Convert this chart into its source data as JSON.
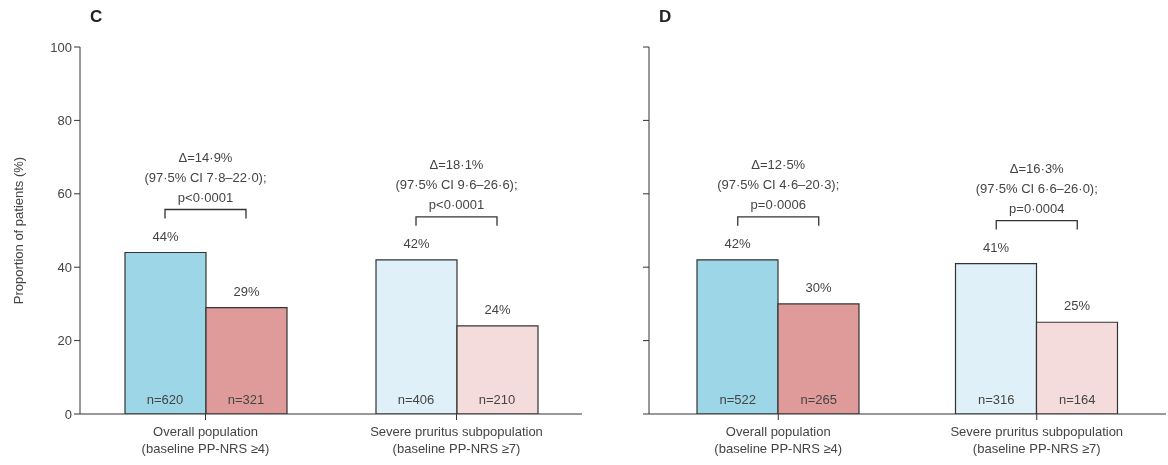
{
  "chart_data": [
    {
      "type": "bar",
      "title": "C",
      "ylabel": "Proportion of patients (%)",
      "categories": [
        "Overall population\n(baseline PP-NRS ≥4)",
        "Severe pruritus subpopulation\n(baseline PP-NRS ≥7)"
      ],
      "series": [
        {
          "values": [
            44,
            42
          ],
          "colors": [
            "#9dd6e6",
            "#dff0f8"
          ],
          "value_labels": [
            "44%",
            "42%"
          ]
        },
        {
          "values": [
            29,
            24
          ],
          "colors": [
            "#df9b9a",
            "#f5dcdc"
          ],
          "value_labels": [
            "29%",
            "24%"
          ]
        }
      ],
      "ylim": [
        0,
        100
      ],
      "yticks": [
        0,
        20,
        40,
        60,
        80,
        100
      ],
      "grid": false,
      "legend": false,
      "annotations": [
        "Δ=14·9%\n(97·5% CI 7·8–22·0);\np<0·0001",
        "Δ=18·1%\n(97·5% CI 9·6–26·6);\np<0·0001",
        "n=620",
        "n=321",
        "n=406",
        "n=210"
      ]
    },
    {
      "type": "bar",
      "title": "D",
      "categories": [
        "Overall population\n(baseline PP-NRS ≥4)",
        "Severe pruritus subpopulation\n(baseline PP-NRS ≥7)"
      ],
      "series": [
        {
          "values": [
            42,
            41
          ],
          "colors": [
            "#9dd6e6",
            "#dff0f8"
          ],
          "value_labels": [
            "42%",
            "41%"
          ]
        },
        {
          "values": [
            30,
            25
          ],
          "colors": [
            "#df9b9a",
            "#f5dcdc"
          ],
          "value_labels": [
            "30%",
            "25%"
          ]
        }
      ],
      "ylim": [
        0,
        100
      ],
      "yticks": [
        {
          "value": 0,
          "label": null
        },
        {
          "value": 20,
          "label": null
        },
        {
          "value": 40,
          "label": null
        },
        {
          "value": 60,
          "label": null
        },
        {
          "value": 80,
          "label": null
        },
        {
          "value": 100,
          "label": null
        }
      ],
      "tick_labels": "x",
      "grid": false,
      "legend": false,
      "annotations": [
        "Δ=12·5%\n(97·5% CI 4·6–20·3);\np=0·0006",
        "Δ=16·3%\n(97·5% CI 6·6–26·0);\np=0·0004",
        "n=522",
        "n=265",
        "n=316",
        "n=164"
      ]
    }
  ]
}
